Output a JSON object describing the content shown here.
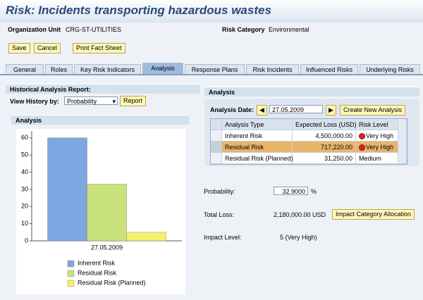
{
  "header": {
    "title": "Risk: Incidents transporting hazardous wastes"
  },
  "fields": {
    "org_unit_label": "Organization Unit",
    "org_unit": "CRG-ST-UTILITIES",
    "risk_category_label": "Risk Category",
    "risk_category": "Environmental"
  },
  "toolbar": [
    "Save",
    "Cancel",
    "Print Fact Sheet"
  ],
  "tabs": [
    "General",
    "Roles",
    "Key Risk Indicators",
    "Analysis",
    "Response Plans",
    "Risk Incidents",
    "Influenced Risks",
    "Underlying Risks"
  ],
  "left_panel": {
    "title": "Historical Analysis Report:",
    "view_label": "View History by:",
    "view_value": "Probability",
    "report_button": "Report",
    "chart_title": "Analysis"
  },
  "chart_data": {
    "type": "bar",
    "categories": [
      "27.05.2009"
    ],
    "series": [
      {
        "name": "Inherent Risk",
        "color": "#7ea6e0",
        "values": [
          60
        ]
      },
      {
        "name": "Residual Risk",
        "color": "#c9e27a",
        "values": [
          33
        ]
      },
      {
        "name": "Residual Risk (Planned)",
        "color": "#f5f06a",
        "values": [
          5
        ]
      }
    ],
    "ylim": [
      0,
      64
    ],
    "yticks": [
      0,
      10,
      20,
      30,
      40,
      50,
      60
    ]
  },
  "right_panel": {
    "title": "Analysis",
    "date_label": "Analysis Date:",
    "date": "27.05.2009",
    "create_button": "Create New Analysis",
    "table": {
      "columns": [
        "Analysis Type",
        "Expected Loss (USD)",
        "Risk Level"
      ],
      "rows": [
        [
          "Inherent Risk",
          "4,500,000.00",
          "Very High"
        ],
        [
          "Residual Risk",
          "717,220.00",
          "Very High"
        ],
        [
          "Residual Risk (Planned)",
          "31,250.00",
          "Medium"
        ]
      ]
    },
    "probability_label": "Probability:",
    "probability": "32.9000",
    "probability_unit": "%",
    "total_loss_label": "Total Loss:",
    "total_loss": "2,180,000.00 USD",
    "allocation_button": "Impact Category Allocation",
    "impact_label": "Impact Level:",
    "impact": "5 (Very High)"
  }
}
